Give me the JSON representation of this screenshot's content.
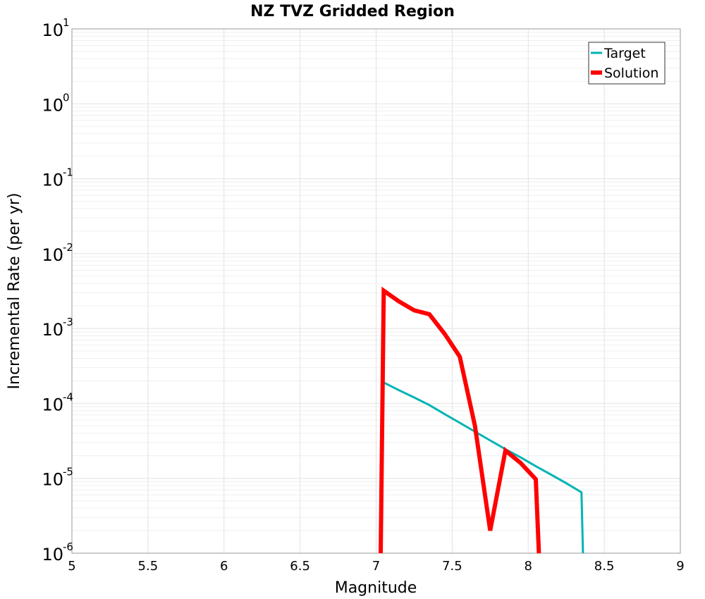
{
  "chart_data": {
    "type": "line",
    "title": "NZ TVZ Gridded Region",
    "xlabel": "Magnitude",
    "ylabel": "Incremental Rate (per yr)",
    "xlim": [
      5,
      9
    ],
    "ylim": [
      1e-06,
      10
    ],
    "yscale": "log",
    "grid": true,
    "legend_position": "top-right",
    "x_ticks": [
      "5",
      "5.5",
      "6",
      "6.5",
      "7",
      "7.5",
      "8",
      "8.5",
      "9"
    ],
    "y_ticks": [
      {
        "base": "10",
        "exp": "-6"
      },
      {
        "base": "10",
        "exp": "-5"
      },
      {
        "base": "10",
        "exp": "-4"
      },
      {
        "base": "10",
        "exp": "-3"
      },
      {
        "base": "10",
        "exp": "-2"
      },
      {
        "base": "10",
        "exp": "-1"
      },
      {
        "base": "10",
        "exp": "0"
      },
      {
        "base": "10",
        "exp": "1"
      }
    ],
    "series": [
      {
        "name": "Target",
        "color": "#00b4b4",
        "points": [
          [
            7.05,
            0.00019
          ],
          [
            7.15,
            0.00015
          ],
          [
            7.25,
            0.00012
          ],
          [
            7.35,
            9.5e-05
          ],
          [
            7.45,
            7.2e-05
          ],
          [
            7.55,
            5.5e-05
          ],
          [
            7.65,
            4.2e-05
          ],
          [
            7.75,
            3.2e-05
          ],
          [
            7.85,
            2.45e-05
          ],
          [
            7.95,
            1.9e-05
          ],
          [
            8.05,
            1.45e-05
          ],
          [
            8.15,
            1.12e-05
          ],
          [
            8.25,
            8.6e-06
          ],
          [
            8.35,
            6.5e-06
          ],
          [
            8.36,
            1e-06
          ]
        ]
      },
      {
        "name": "Solution",
        "color": "#ff0000",
        "points": [
          [
            7.03,
            1e-06
          ],
          [
            7.05,
            0.0032
          ],
          [
            7.15,
            0.0023
          ],
          [
            7.25,
            0.00175
          ],
          [
            7.35,
            0.00155
          ],
          [
            7.45,
            0.00085
          ],
          [
            7.55,
            0.00042
          ],
          [
            7.65,
            5e-05
          ],
          [
            7.75,
            2e-06
          ],
          [
            7.85,
            2.35e-05
          ],
          [
            7.95,
            1.6e-05
          ],
          [
            8.05,
            9.7e-06
          ],
          [
            8.07,
            1e-06
          ]
        ]
      }
    ]
  }
}
